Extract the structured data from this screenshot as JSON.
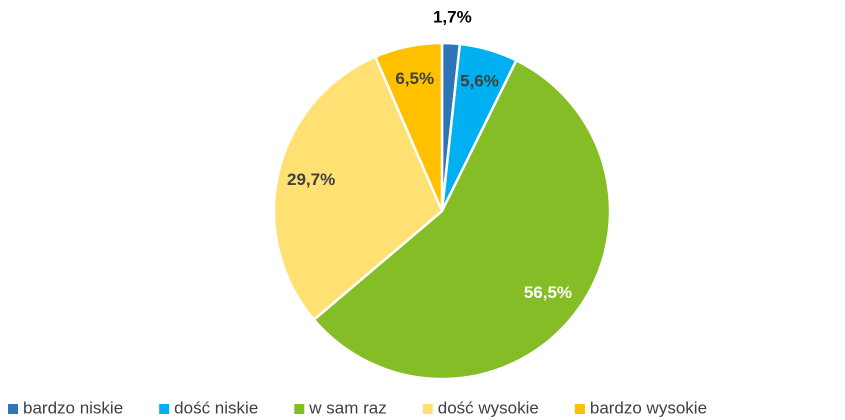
{
  "chart_data": {
    "type": "pie",
    "categories": [
      "bardzo niskie",
      "dość niskie",
      "w sam raz",
      "dość wysokie",
      "bardzo wysokie"
    ],
    "values": [
      1.7,
      5.6,
      56.5,
      29.7,
      6.5
    ],
    "value_labels": [
      "1,7%",
      "5,6%",
      "56,5%",
      "29,7%",
      "6,5%"
    ],
    "colors": [
      "#2e75b6",
      "#00b0f0",
      "#84bd25",
      "#ffe073",
      "#ffc000"
    ],
    "legend": "bottom"
  }
}
